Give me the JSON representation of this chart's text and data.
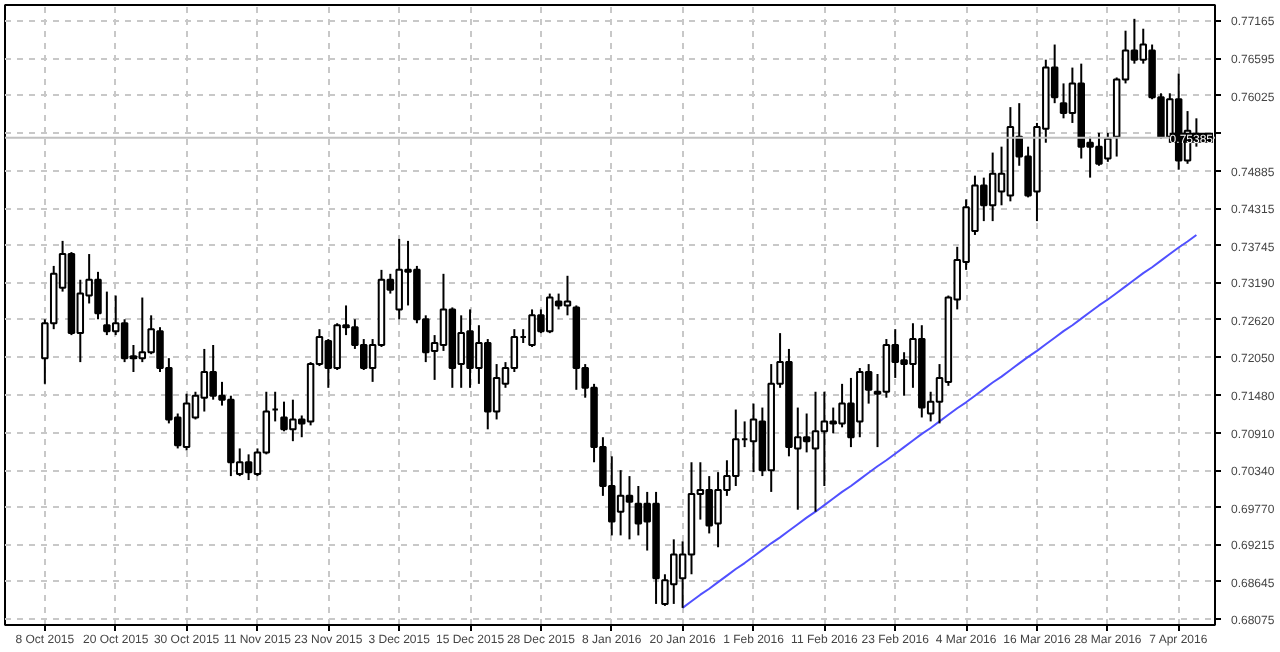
{
  "chart_data": {
    "type": "candlestick",
    "categories": [
      "8 Oct 2015",
      null,
      null,
      null,
      null,
      null,
      null,
      null,
      "20 Oct 2015",
      null,
      null,
      null,
      null,
      null,
      null,
      null,
      "30 Oct 2015",
      null,
      null,
      null,
      null,
      null,
      null,
      null,
      "11 Nov 2015",
      null,
      null,
      null,
      null,
      null,
      null,
      null,
      "23 Nov 2015",
      null,
      null,
      null,
      null,
      null,
      null,
      null,
      "3 Dec 2015",
      null,
      null,
      null,
      null,
      null,
      null,
      null,
      "15 Dec 2015",
      null,
      null,
      null,
      null,
      null,
      null,
      null,
      "28 Dec 2015",
      null,
      null,
      null,
      null,
      null,
      null,
      null,
      "8 Jan 2016",
      null,
      null,
      null,
      null,
      null,
      null,
      null,
      "20 Jan 2016",
      null,
      null,
      null,
      null,
      null,
      null,
      null,
      "1 Feb 2016",
      null,
      null,
      null,
      null,
      null,
      null,
      null,
      "11 Feb 2016",
      null,
      null,
      null,
      null,
      null,
      null,
      null,
      "23 Feb 2016",
      null,
      null,
      null,
      null,
      null,
      null,
      null,
      "4 Mar 2016",
      null,
      null,
      null,
      null,
      null,
      null,
      null,
      "16 Mar 2016",
      null,
      null,
      null,
      null,
      null,
      null,
      null,
      "28 Mar 2016",
      null,
      null,
      null,
      null,
      null,
      null,
      null,
      "7 Apr 2016",
      null,
      null
    ],
    "series": [
      {
        "color": "#000000",
        "ohlc": [
          [
            0.7204,
            0.7263,
            0.7165,
            0.7257
          ],
          [
            0.7257,
            0.7344,
            0.7248,
            0.7332
          ],
          [
            0.7311,
            0.7382,
            0.7305,
            0.7362
          ],
          [
            0.7362,
            0.7365,
            0.7239,
            0.7242
          ],
          [
            0.7242,
            0.7323,
            0.7198,
            0.7302
          ],
          [
            0.7299,
            0.7362,
            0.7287,
            0.7323
          ],
          [
            0.7323,
            0.7335,
            0.7263,
            0.7272
          ],
          [
            0.7254,
            0.7305,
            0.7239,
            0.7245
          ],
          [
            0.7245,
            0.7299,
            0.7239,
            0.7257
          ],
          [
            0.7257,
            0.7263,
            0.7198,
            0.7204
          ],
          [
            0.7207,
            0.7224,
            0.7183,
            0.7204
          ],
          [
            0.7204,
            0.7296,
            0.7198,
            0.7213
          ],
          [
            0.7213,
            0.7269,
            0.721,
            0.7248
          ],
          [
            0.7245,
            0.7251,
            0.7183,
            0.7189
          ],
          [
            0.7189,
            0.7204,
            0.7105,
            0.7111
          ],
          [
            0.7114,
            0.712,
            0.7067,
            0.7072
          ],
          [
            0.7069,
            0.715,
            0.7064,
            0.7135
          ],
          [
            0.7114,
            0.7153,
            0.7111,
            0.7147
          ],
          [
            0.7144,
            0.7218,
            0.7123,
            0.7183
          ],
          [
            0.7183,
            0.7224,
            0.7141,
            0.7147
          ],
          [
            0.7147,
            0.7168,
            0.7132,
            0.7141
          ],
          [
            0.7141,
            0.7147,
            0.7025,
            0.7046
          ],
          [
            0.7028,
            0.7067,
            0.7025,
            0.7046
          ],
          [
            0.7046,
            0.7058,
            0.7019,
            0.7031
          ],
          [
            0.7028,
            0.7067,
            0.7025,
            0.7061
          ],
          [
            0.7061,
            0.7153,
            0.7058,
            0.7123
          ],
          [
            0.7126,
            0.7153,
            0.7108,
            0.7126
          ],
          [
            0.7114,
            0.7138,
            0.7093,
            0.7096
          ],
          [
            0.7096,
            0.7141,
            0.7078,
            0.7111
          ],
          [
            0.7111,
            0.7117,
            0.7084,
            0.7105
          ],
          [
            0.7108,
            0.7198,
            0.7102,
            0.7195
          ],
          [
            0.7195,
            0.7248,
            0.7192,
            0.7236
          ],
          [
            0.723,
            0.7233,
            0.7159,
            0.7189
          ],
          [
            0.7189,
            0.7257,
            0.7186,
            0.7254
          ],
          [
            0.7254,
            0.7284,
            0.7239,
            0.7251
          ],
          [
            0.7251,
            0.7263,
            0.7218,
            0.7224
          ],
          [
            0.7224,
            0.7233,
            0.7186,
            0.7189
          ],
          [
            0.7189,
            0.7233,
            0.7168,
            0.7224
          ],
          [
            0.7224,
            0.7338,
            0.7221,
            0.7323
          ],
          [
            0.7323,
            0.7332,
            0.7302,
            0.7308
          ],
          [
            0.7278,
            0.7385,
            0.7263,
            0.7338
          ],
          [
            0.7338,
            0.7382,
            0.7284,
            0.7335
          ],
          [
            0.7338,
            0.7344,
            0.7257,
            0.7263
          ],
          [
            0.7263,
            0.7269,
            0.7198,
            0.7213
          ],
          [
            0.7215,
            0.7239,
            0.7171,
            0.7227
          ],
          [
            0.7224,
            0.7332,
            0.7215,
            0.7278
          ],
          [
            0.7278,
            0.7281,
            0.7159,
            0.7189
          ],
          [
            0.7195,
            0.7269,
            0.7159,
            0.7242
          ],
          [
            0.7245,
            0.7278,
            0.7159,
            0.7189
          ],
          [
            0.7189,
            0.7254,
            0.7165,
            0.7227
          ],
          [
            0.7227,
            0.7233,
            0.7096,
            0.7123
          ],
          [
            0.7123,
            0.7195,
            0.7111,
            0.7174
          ],
          [
            0.7165,
            0.7198,
            0.7159,
            0.7189
          ],
          [
            0.7189,
            0.7248,
            0.7183,
            0.7236
          ],
          [
            0.7236,
            0.7248,
            0.7227,
            0.7236
          ],
          [
            0.7224,
            0.7278,
            0.7221,
            0.7269
          ],
          [
            0.7269,
            0.7278,
            0.7242,
            0.7245
          ],
          [
            0.7245,
            0.7302,
            0.7242,
            0.7296
          ],
          [
            0.729,
            0.7302,
            0.7278,
            0.7284
          ],
          [
            0.7284,
            0.7329,
            0.7269,
            0.729
          ],
          [
            0.7281,
            0.7284,
            0.7156,
            0.7189
          ],
          [
            0.7189,
            0.7195,
            0.7144,
            0.7159
          ],
          [
            0.7159,
            0.7165,
            0.7046,
            0.7069
          ],
          [
            0.7069,
            0.7084,
            0.6995,
            0.701
          ],
          [
            0.701,
            0.7055,
            0.6935,
            0.6956
          ],
          [
            0.6971,
            0.7034,
            0.6935,
            0.6995
          ],
          [
            0.6995,
            0.7025,
            0.6929,
            0.6986
          ],
          [
            0.6983,
            0.701,
            0.6935,
            0.6953
          ],
          [
            0.6983,
            0.7001,
            0.6912,
            0.6956
          ],
          [
            0.6983,
            0.7001,
            0.6831,
            0.687
          ],
          [
            0.6831,
            0.6876,
            0.6828,
            0.6867
          ],
          [
            0.6861,
            0.6929,
            0.6831,
            0.6906
          ],
          [
            0.687,
            0.6926,
            0.6825,
            0.6906
          ],
          [
            0.6906,
            0.7046,
            0.6876,
            0.6998
          ],
          [
            0.6998,
            0.7046,
            0.6959,
            0.7004
          ],
          [
            0.7004,
            0.7025,
            0.6938,
            0.695
          ],
          [
            0.6953,
            0.7031,
            0.6917,
            0.7004
          ],
          [
            0.7004,
            0.7049,
            0.6995,
            0.7025
          ],
          [
            0.7025,
            0.7126,
            0.701,
            0.7081
          ],
          [
            0.7081,
            0.7108,
            0.7069,
            0.7081
          ],
          [
            0.7078,
            0.7135,
            0.7031,
            0.7111
          ],
          [
            0.7108,
            0.7129,
            0.7025,
            0.7034
          ],
          [
            0.7034,
            0.7195,
            0.7001,
            0.7165
          ],
          [
            0.7165,
            0.7242,
            0.7159,
            0.7198
          ],
          [
            0.7198,
            0.7218,
            0.7055,
            0.7069
          ],
          [
            0.7067,
            0.7129,
            0.6974,
            0.7084
          ],
          [
            0.7084,
            0.712,
            0.7061,
            0.7078
          ],
          [
            0.7067,
            0.7153,
            0.6971,
            0.7093
          ],
          [
            0.7093,
            0.7153,
            0.701,
            0.7108
          ],
          [
            0.7108,
            0.7129,
            0.709,
            0.7105
          ],
          [
            0.7105,
            0.7165,
            0.7099,
            0.7135
          ],
          [
            0.7135,
            0.7174,
            0.7069,
            0.7084
          ],
          [
            0.7108,
            0.7189,
            0.7084,
            0.7183
          ],
          [
            0.7183,
            0.7195,
            0.7135,
            0.7156
          ],
          [
            0.7153,
            0.718,
            0.7069,
            0.715
          ],
          [
            0.7153,
            0.7233,
            0.7144,
            0.7224
          ],
          [
            0.7224,
            0.7248,
            0.7174,
            0.7198
          ],
          [
            0.7201,
            0.7213,
            0.7147,
            0.7195
          ],
          [
            0.7195,
            0.7257,
            0.7159,
            0.7233
          ],
          [
            0.7233,
            0.7254,
            0.7114,
            0.7129
          ],
          [
            0.712,
            0.7153,
            0.7108,
            0.7138
          ],
          [
            0.7138,
            0.7195,
            0.7105,
            0.7174
          ],
          [
            0.7168,
            0.7299,
            0.7162,
            0.7296
          ],
          [
            0.7293,
            0.7373,
            0.7278,
            0.7353
          ],
          [
            0.735,
            0.7445,
            0.7338,
            0.7433
          ],
          [
            0.7397,
            0.7481,
            0.7391,
            0.7466
          ],
          [
            0.7466,
            0.7478,
            0.7412,
            0.7436
          ],
          [
            0.7436,
            0.7516,
            0.7412,
            0.7484
          ],
          [
            0.7457,
            0.7525,
            0.7436,
            0.7484
          ],
          [
            0.7451,
            0.7585,
            0.7442,
            0.7555
          ],
          [
            0.754,
            0.7591,
            0.7496,
            0.751
          ],
          [
            0.751,
            0.7525,
            0.7448,
            0.7451
          ],
          [
            0.7457,
            0.7561,
            0.7412,
            0.7555
          ],
          [
            0.7552,
            0.7657,
            0.7531,
            0.7645
          ],
          [
            0.7645,
            0.768,
            0.7591,
            0.76
          ],
          [
            0.7591,
            0.7621,
            0.7568,
            0.7576
          ],
          [
            0.7576,
            0.7645,
            0.7561,
            0.7621
          ],
          [
            0.7621,
            0.7651,
            0.7507,
            0.7525
          ],
          [
            0.7531,
            0.754,
            0.7478,
            0.7525
          ],
          [
            0.7525,
            0.7546,
            0.7496,
            0.7499
          ],
          [
            0.7507,
            0.7546,
            0.7502,
            0.7537
          ],
          [
            0.754,
            0.763,
            0.751,
            0.7627
          ],
          [
            0.7627,
            0.7701,
            0.7621,
            0.7671
          ],
          [
            0.7671,
            0.7719,
            0.7651,
            0.7657
          ],
          [
            0.7657,
            0.7704,
            0.7651,
            0.768
          ],
          [
            0.7671,
            0.768,
            0.7597,
            0.76
          ],
          [
            0.76,
            0.7606,
            0.7537,
            0.754
          ],
          [
            0.754,
            0.7606,
            0.7531,
            0.7597
          ],
          [
            0.7597,
            0.7636,
            0.749,
            0.7504
          ],
          [
            0.7504,
            0.7579,
            0.7499,
            0.7549
          ],
          [
            0.7541,
            0.7568,
            0.7525,
            0.75385
          ]
        ]
      },
      {
        "type": "line",
        "color": "#5050ff",
        "values": [
          null,
          null,
          null,
          null,
          null,
          null,
          null,
          null,
          null,
          null,
          null,
          null,
          null,
          null,
          null,
          null,
          null,
          null,
          null,
          null,
          null,
          null,
          null,
          null,
          null,
          null,
          null,
          null,
          null,
          null,
          null,
          null,
          null,
          null,
          null,
          null,
          null,
          null,
          null,
          null,
          null,
          null,
          null,
          null,
          null,
          null,
          null,
          null,
          null,
          null,
          null,
          null,
          null,
          null,
          null,
          null,
          null,
          null,
          null,
          null,
          null,
          null,
          null,
          null,
          null,
          null,
          null,
          null,
          null,
          null,
          null,
          null,
          0.6825,
          0.6835,
          0.6845,
          0.6854,
          0.6864,
          0.6874,
          0.6884,
          0.6893,
          0.6903,
          0.6913,
          0.6923,
          0.6932,
          0.6942,
          0.6952,
          0.6962,
          0.6971,
          0.6981,
          0.6991,
          0.7001,
          0.701,
          0.702,
          0.703,
          0.704,
          0.7049,
          0.7059,
          0.7069,
          0.7079,
          0.7089,
          0.7098,
          0.7108,
          0.7118,
          0.7128,
          0.7137,
          0.7147,
          0.7157,
          0.7167,
          0.7176,
          0.7186,
          0.7196,
          0.7206,
          0.7215,
          0.7225,
          0.7235,
          0.7245,
          0.7254,
          0.7264,
          0.7274,
          0.7284,
          0.7293,
          0.7303,
          0.7313,
          0.7323,
          0.7333,
          0.7342,
          0.7352,
          0.7362,
          0.7372,
          0.7381,
          0.7391
        ]
      }
    ],
    "ylim": [
      0.6799,
      0.774
    ],
    "yticks": [
      0.68075,
      0.68645,
      0.69215,
      {
        "value": 0.6977,
        "label": "0.69770"
      },
      {
        "value": 0.7034,
        "label": "0.70340"
      },
      {
        "value": 0.7091,
        "label": "0.70910"
      },
      {
        "value": 0.7148,
        "label": "0.71480"
      },
      {
        "value": 0.7205,
        "label": "0.72050"
      },
      {
        "value": 0.7262,
        "label": "0.72620"
      },
      {
        "value": 0.7319,
        "label": "0.73190"
      },
      0.73745,
      0.74315,
      0.74885,
      {
        "value": 0.75455,
        "label": null
      },
      0.76025,
      0.76595,
      0.77165
    ],
    "ref_lines": [
      {
        "axis": "y",
        "value": 0.75385,
        "label": "0.75385",
        "color": "#c0c0c0"
      }
    ],
    "grid": true
  }
}
